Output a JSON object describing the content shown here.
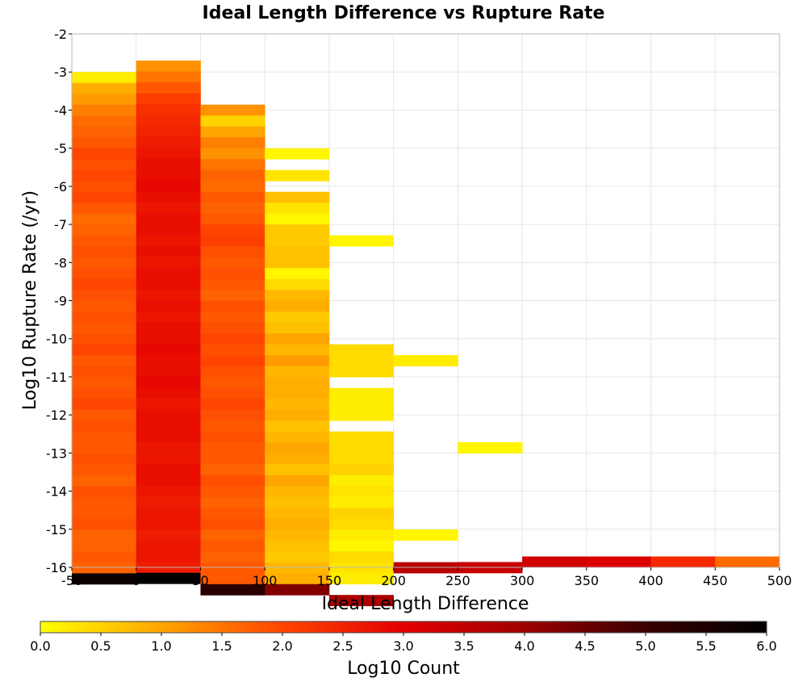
{
  "chart_data": {
    "type": "heatmap",
    "title": "Ideal Length Difference vs Rupture Rate",
    "xlabel": "Ideal Length Difference",
    "ylabel": "Log10 Rupture Rate (/yr)",
    "xlim": [
      -50,
      500
    ],
    "ylim": [
      -16,
      -2
    ],
    "x_ticks": [
      "-50",
      "0",
      "50",
      "100",
      "150",
      "200",
      "250",
      "300",
      "350",
      "400",
      "450",
      "500"
    ],
    "y_ticks": [
      "-2",
      "-3",
      "-4",
      "-5",
      "-6",
      "-7",
      "-8",
      "-9",
      "-10",
      "-11",
      "-12",
      "-13",
      "-14",
      "-15",
      "-16"
    ],
    "x_bin_width": 50,
    "y_bin_height": 0.286,
    "grid": true,
    "colorbar": {
      "label": "Log10 Count",
      "range": [
        0.0,
        6.0
      ],
      "ticks": [
        "0.0",
        "0.5",
        "1.0",
        "1.5",
        "2.0",
        "2.5",
        "3.0",
        "3.5",
        "4.0",
        "4.5",
        "5.0",
        "5.5",
        "6.0"
      ],
      "colormap": [
        "#ffff00",
        "#ffa500",
        "#ff4500",
        "#e30000",
        "#9e0000",
        "#3a0000",
        "#000000"
      ]
    },
    "columns": [
      {
        "x_start": -50,
        "y_top": -3.0,
        "values": [
          0.2,
          0.9,
          1.1,
          1.4,
          1.6,
          1.7,
          1.8,
          2.0,
          1.9,
          2.0,
          1.9,
          2.0,
          1.8,
          1.6,
          1.7,
          1.8,
          1.9,
          1.8,
          1.9,
          2.0,
          1.9,
          1.8,
          1.9,
          1.8,
          1.9,
          2.0,
          1.8,
          1.9,
          1.8,
          1.9,
          2.0,
          1.8,
          1.9,
          1.8,
          1.8,
          1.9,
          1.8,
          1.7,
          1.9,
          1.8,
          1.8,
          1.9,
          1.7,
          1.7,
          1.8,
          1.7,
          5.8
        ]
      },
      {
        "x_start": 0,
        "y_top": -2.7,
        "values": [
          1.2,
          1.5,
          1.8,
          2.1,
          2.3,
          2.4,
          2.5,
          2.6,
          2.7,
          2.8,
          2.8,
          2.9,
          2.8,
          2.7,
          2.8,
          2.8,
          2.7,
          2.8,
          2.7,
          2.8,
          2.8,
          2.7,
          2.8,
          2.7,
          2.8,
          2.8,
          2.9,
          2.8,
          2.8,
          2.9,
          2.8,
          2.7,
          2.8,
          2.8,
          2.8,
          2.7,
          2.7,
          2.8,
          2.8,
          2.7,
          2.6,
          2.7,
          2.7,
          2.6,
          2.7,
          2.7,
          2.6,
          6.0
        ]
      },
      {
        "x_start": 50,
        "y_top": -3.857,
        "values": [
          1.2,
          0.5,
          1.0,
          1.4,
          1.2,
          1.5,
          1.7,
          1.6,
          1.8,
          1.7,
          1.8,
          2.0,
          2.1,
          1.9,
          1.8,
          1.9,
          1.8,
          1.7,
          1.9,
          1.8,
          1.9,
          2.0,
          1.9,
          2.0,
          1.9,
          1.8,
          1.9,
          2.0,
          1.9,
          1.8,
          1.9,
          1.8,
          1.8,
          1.7,
          1.9,
          1.8,
          1.7,
          1.8,
          1.9,
          1.7,
          1.8,
          1.7,
          1.8,
          1.8,
          5.3
        ]
      },
      {
        "x_start": 100,
        "y_top": -5.0,
        "values": [
          0.1,
          null,
          0.3,
          null,
          0.7,
          0.3,
          0.1,
          0.6,
          0.6,
          0.7,
          0.7,
          0.1,
          0.4,
          0.8,
          0.9,
          0.6,
          0.7,
          1.0,
          0.8,
          1.1,
          0.8,
          0.9,
          0.9,
          0.8,
          0.9,
          0.7,
          0.8,
          1.0,
          0.9,
          0.7,
          1.0,
          0.8,
          0.7,
          0.8,
          0.9,
          0.8,
          0.7,
          0.6,
          0.8,
          0.9,
          4.3
        ]
      },
      {
        "x_start": 150,
        "y_top": -7.286,
        "values": [
          0.1,
          null,
          null,
          null,
          null,
          null,
          null,
          null,
          null,
          null,
          0.4,
          0.4,
          0.4,
          null,
          0.2,
          0.2,
          0.2,
          null,
          0.4,
          0.4,
          0.4,
          0.5,
          0.2,
          0.3,
          0.2,
          0.5,
          0.4,
          0.2,
          0.1,
          0.4,
          0.3,
          0.2,
          null,
          3.8
        ]
      },
      {
        "x_start": 200,
        "y_top": -10.429,
        "values": [
          0.2,
          null,
          null,
          null,
          null,
          null,
          null,
          null,
          null,
          null,
          null,
          null,
          null,
          null,
          null,
          null,
          0.1,
          null,
          null,
          3.6
        ]
      },
      {
        "x_start": 250,
        "y_top": -12.714,
        "values": [
          0.1,
          null,
          null,
          null,
          null,
          null,
          null,
          null,
          null,
          null,
          null,
          3.4
        ]
      },
      {
        "x_start": 300,
        "y_top": -15.714,
        "values": [
          3.3
        ]
      },
      {
        "x_start": 350,
        "y_top": -15.714,
        "values": [
          3.1
        ]
      },
      {
        "x_start": 400,
        "y_top": -15.714,
        "values": [
          2.4
        ]
      },
      {
        "x_start": 450,
        "y_top": -15.714,
        "values": [
          1.6
        ]
      }
    ]
  }
}
